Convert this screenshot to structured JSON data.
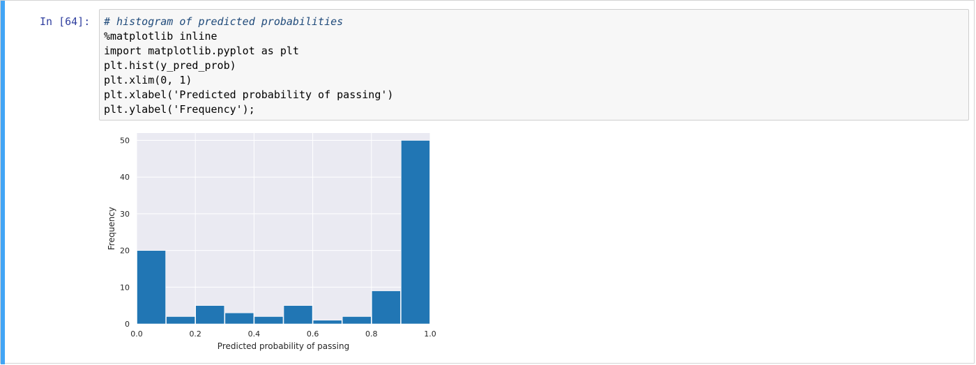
{
  "cell": {
    "prompt": "In [64]:",
    "code_lines": [
      {
        "text": "# histogram of predicted probabilities",
        "kind": "comment"
      },
      {
        "text": "%matplotlib inline",
        "kind": "code"
      },
      {
        "text": "import matplotlib.pyplot as plt",
        "kind": "code"
      },
      {
        "text": "plt.hist(y_pred_prob)",
        "kind": "code"
      },
      {
        "text": "plt.xlim(0, 1)",
        "kind": "code"
      },
      {
        "text": "plt.xlabel('Predicted probability of passing')",
        "kind": "code"
      },
      {
        "text": "plt.ylabel('Frequency');",
        "kind": "code"
      }
    ]
  },
  "colors": {
    "bar": "#2176b4",
    "plot_bg": "#eaeaf2",
    "grid": "#ffffff",
    "prompt": "#303f9f",
    "comment": "#1f4a7a",
    "selected_bar": "#42a5f5"
  },
  "chart_data": {
    "type": "bar",
    "xlabel": "Predicted probability of passing",
    "ylabel": "Frequency",
    "xlim": [
      0,
      1
    ],
    "ylim": [
      0,
      52
    ],
    "x_ticks": [
      0.0,
      0.2,
      0.4,
      0.6,
      0.8,
      1.0
    ],
    "x_tick_labels": [
      "0.0",
      "0.2",
      "0.4",
      "0.6",
      "0.8",
      "1.0"
    ],
    "y_ticks": [
      0,
      10,
      20,
      30,
      40,
      50
    ],
    "y_tick_labels": [
      "0",
      "10",
      "20",
      "30",
      "40",
      "50"
    ],
    "bins": [
      {
        "x0": 0.0,
        "x1": 0.1,
        "value": 20
      },
      {
        "x0": 0.1,
        "x1": 0.2,
        "value": 2
      },
      {
        "x0": 0.2,
        "x1": 0.3,
        "value": 5
      },
      {
        "x0": 0.3,
        "x1": 0.4,
        "value": 3
      },
      {
        "x0": 0.4,
        "x1": 0.5,
        "value": 2
      },
      {
        "x0": 0.5,
        "x1": 0.6,
        "value": 5
      },
      {
        "x0": 0.6,
        "x1": 0.7,
        "value": 1
      },
      {
        "x0": 0.7,
        "x1": 0.8,
        "value": 2
      },
      {
        "x0": 0.8,
        "x1": 0.9,
        "value": 9
      },
      {
        "x0": 0.9,
        "x1": 1.0,
        "value": 50
      }
    ],
    "grid": true,
    "legend": "none"
  }
}
